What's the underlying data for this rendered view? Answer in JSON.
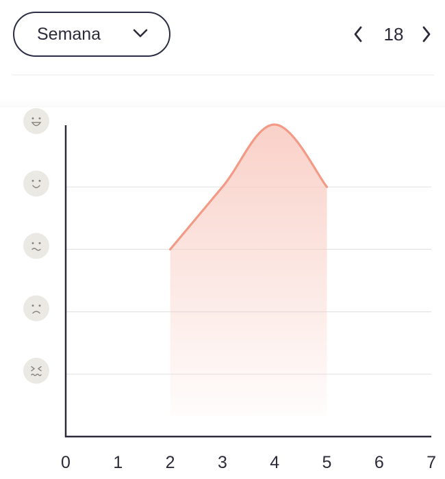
{
  "header": {
    "period_select": {
      "label": "Semana"
    },
    "pager": {
      "value": "18"
    }
  },
  "icons": {
    "dropdown": "chevron-down-icon",
    "prev": "chevron-left-icon",
    "next": "chevron-right-icon"
  },
  "colors": {
    "line": "#f29a86",
    "fill": "#f8c9bf",
    "grid": "#e4e4e4",
    "axis": "#2b2b3a",
    "mood_badge": "#ebe9e4",
    "mood_face": "#8a867f"
  },
  "chart_data": {
    "type": "area",
    "x_ticks": [
      "0",
      "1",
      "2",
      "3",
      "4",
      "5",
      "6",
      "7"
    ],
    "xlim": [
      0,
      7
    ],
    "ylim": [
      0,
      5
    ],
    "y_levels": [
      {
        "value": 1,
        "icon": "very-sad-face-icon"
      },
      {
        "value": 2,
        "icon": "sad-face-icon"
      },
      {
        "value": 3,
        "icon": "neutral-face-icon"
      },
      {
        "value": 4,
        "icon": "smile-face-icon"
      },
      {
        "value": 5,
        "icon": "very-happy-face-icon"
      }
    ],
    "x": [
      2,
      3,
      4,
      5
    ],
    "y": [
      3,
      4,
      5,
      4
    ],
    "grid": true,
    "smooth": true
  }
}
